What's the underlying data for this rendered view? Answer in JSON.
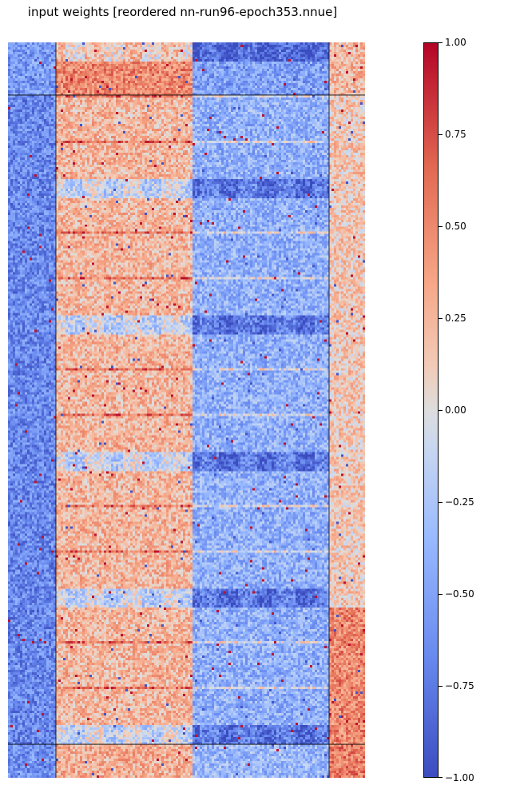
{
  "chart_data": {
    "type": "heatmap",
    "title": "input weights [reordered nn-run96-epoch353.nnue]",
    "colormap": "coolwarm",
    "colorbar": {
      "min": -1.0,
      "max": 1.0,
      "ticks": [
        1.0,
        0.75,
        0.5,
        0.25,
        0.0,
        -0.25,
        -0.5,
        -0.75,
        -1.0
      ],
      "tick_labels": [
        "1.00",
        "0.75",
        "0.50",
        "0.25",
        "0.00",
        "−0.25",
        "−0.50",
        "−0.75",
        "−1.00"
      ]
    },
    "grid": {
      "block_columns": [
        {
          "tone": -0.55
        },
        {
          "tone": 0.35
        },
        {
          "tone": -0.3
        },
        {
          "tone": 0.25
        }
      ],
      "block_rows": [
        {
          "tone": 0.0
        },
        {
          "tone": -0.1
        },
        {
          "tone": -0.05
        }
      ]
    }
  }
}
